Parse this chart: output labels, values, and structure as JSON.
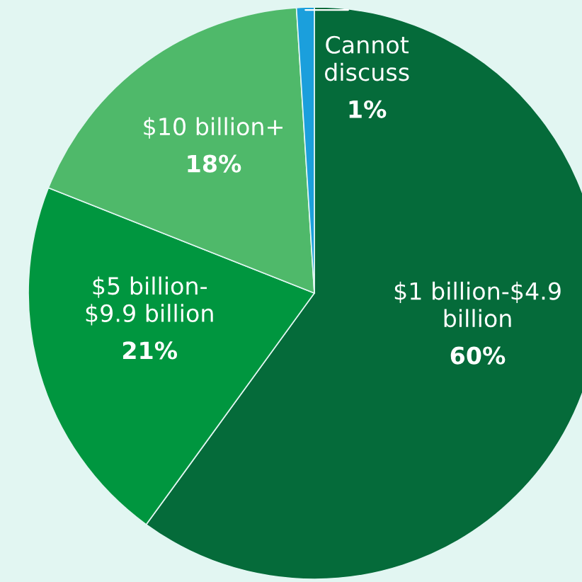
{
  "chart_data": {
    "type": "pie",
    "categories": [
      "$1 billion-$4.9\nbillion",
      "$5 billion-\n$9.9 billion",
      "$10 billion+",
      "Cannot\ndiscuss"
    ],
    "values": [
      60,
      21,
      18,
      1
    ],
    "colors": [
      "#056b3a",
      "#00963f",
      "#4fb96a",
      "#1b9fdc"
    ],
    "value_labels": [
      "60%",
      "21%",
      "18%",
      "1%"
    ]
  }
}
